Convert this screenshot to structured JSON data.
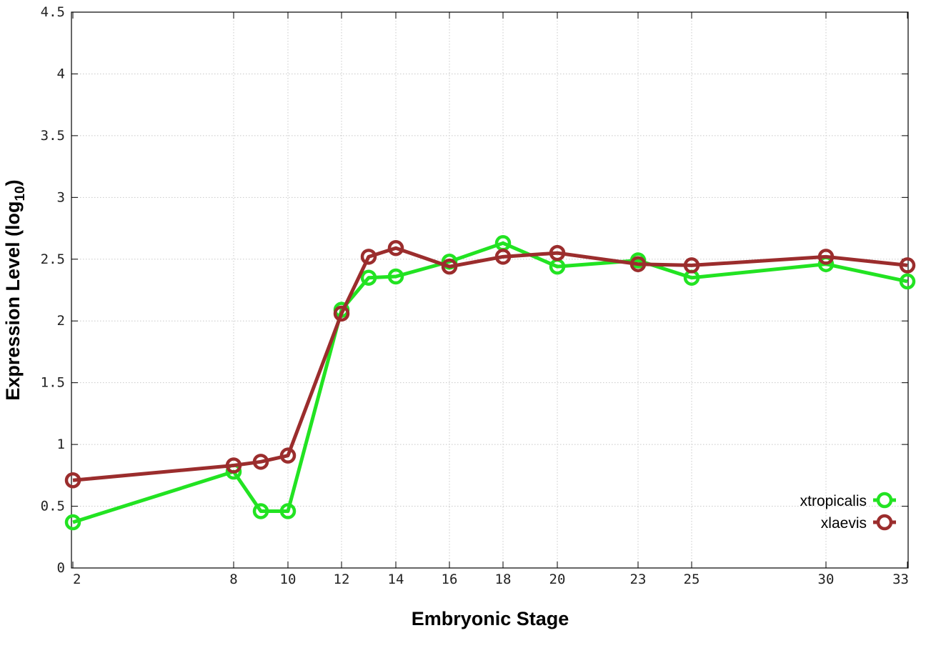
{
  "chart_data": {
    "type": "line",
    "xlabel": "Embryonic Stage",
    "ylabel": {
      "main": "Expression Level (log",
      "sub": "10",
      "close": ")"
    },
    "x_ticks": [
      2,
      8,
      10,
      12,
      14,
      16,
      18,
      20,
      23,
      25,
      30,
      33
    ],
    "x_categories": [
      2,
      8,
      9,
      10,
      12,
      13,
      14,
      16,
      18,
      20,
      23,
      25,
      30,
      33
    ],
    "y_ticks": [
      "0",
      "0.5",
      "1",
      "1.5",
      "2",
      "2.5",
      "3",
      "3.5",
      "4",
      "4.5"
    ],
    "ylim": [
      0,
      4.5
    ],
    "grid": true,
    "legend_position": "bottom-right",
    "series": [
      {
        "name": "xtropicalis",
        "color": "#22e322",
        "x": [
          2,
          8,
          9,
          10,
          12,
          13,
          14,
          16,
          18,
          20,
          23,
          25,
          30,
          33
        ],
        "values": [
          0.37,
          0.78,
          0.46,
          0.46,
          2.09,
          2.35,
          2.36,
          2.48,
          2.63,
          2.44,
          2.49,
          2.35,
          2.46,
          2.32
        ]
      },
      {
        "name": "xlaevis",
        "color": "#9b2d2d",
        "x": [
          2,
          8,
          9,
          10,
          12,
          13,
          14,
          16,
          18,
          20,
          23,
          25,
          30,
          33
        ],
        "values": [
          0.71,
          0.83,
          0.86,
          0.91,
          2.06,
          2.52,
          2.59,
          2.44,
          2.52,
          2.55,
          2.46,
          2.45,
          2.52,
          2.45
        ]
      }
    ]
  }
}
